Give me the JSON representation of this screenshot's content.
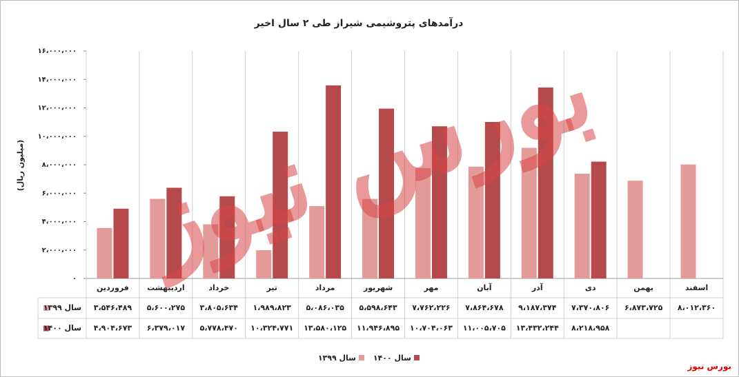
{
  "chart_data": {
    "type": "bar",
    "title": "درآمدهای پتروشیمی شیراز طی ۲ سال اخیر",
    "y_label": "(میلیون ریال)",
    "watermark": "بورس نیوز",
    "footer": "بورس نیوز",
    "categories": [
      "فروردین",
      "اردیبهشت",
      "خرداد",
      "تیر",
      "مرداد",
      "شهریور",
      "مهر",
      "آبان",
      "آذر",
      "دی",
      "بهمن",
      "اسفند"
    ],
    "series": [
      {
        "name": "سال ۱۳۹۹",
        "color": "#e59a9a",
        "values": [
          3546489,
          5600275,
          3805634,
          1989823,
          5086035,
          5598643,
          7762226,
          7864678,
          9187374,
          7370806,
          6873725,
          8012360
        ],
        "value_labels": [
          "۳،۵۴۶،۴۸۹",
          "۵،۶۰۰،۲۷۵",
          "۳،۸۰۵،۶۳۴",
          "۱،۹۸۹،۸۲۳",
          "۵،۰۸۶،۰۳۵",
          "۵،۵۹۸،۶۴۳",
          "۷،۷۶۲،۲۲۶",
          "۷،۸۶۴،۶۷۸",
          "۹،۱۸۷،۳۷۴",
          "۷،۳۷۰،۸۰۶",
          "۶،۸۷۳،۷۲۵",
          "۸،۰۱۲،۳۶۰"
        ]
      },
      {
        "name": "سال ۱۴۰۰",
        "color": "#b5494b",
        "values": [
          4904673,
          6379017,
          5778470,
          10324771,
          13580125,
          11946895,
          10704063,
          11005705,
          13432244,
          8218958,
          null,
          null
        ],
        "value_labels": [
          "۴،۹۰۴،۶۷۳",
          "۶،۳۷۹،۰۱۷",
          "۵،۷۷۸،۴۷۰",
          "۱۰،۳۲۴،۷۷۱",
          "۱۳،۵۸۰،۱۲۵",
          "۱۱،۹۴۶،۸۹۵",
          "۱۰،۷۰۴،۰۶۳",
          "۱۱،۰۰۵،۷۰۵",
          "۱۳،۴۳۲،۲۴۴",
          "۸،۲۱۸،۹۵۸",
          null,
          null
        ]
      }
    ],
    "ylim": [
      0,
      16000000
    ],
    "yticks": [
      {
        "value": 0,
        "label": "۰"
      },
      {
        "value": 2000000,
        "label": "۲،۰۰۰،۰۰۰"
      },
      {
        "value": 4000000,
        "label": "۴،۰۰۰،۰۰۰"
      },
      {
        "value": 6000000,
        "label": "۶،۰۰۰،۰۰۰"
      },
      {
        "value": 8000000,
        "label": "۸،۰۰۰،۰۰۰"
      },
      {
        "value": 10000000,
        "label": "۱۰،۰۰۰،۰۰۰"
      },
      {
        "value": 12000000,
        "label": "۱۲،۰۰۰،۰۰۰"
      },
      {
        "value": 14000000,
        "label": "۱۴،۰۰۰،۰۰۰"
      },
      {
        "value": 16000000,
        "label": "۱۶،۰۰۰،۰۰۰"
      }
    ],
    "grid": false
  }
}
